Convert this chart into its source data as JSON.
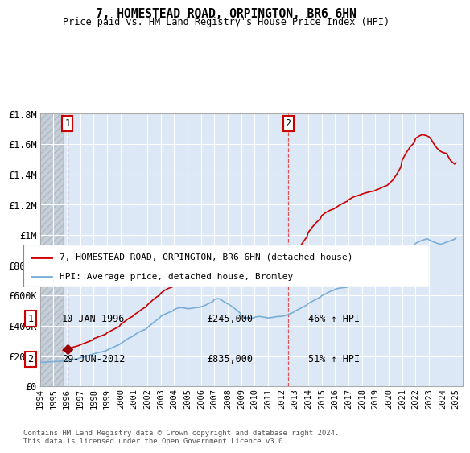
{
  "title": "7, HOMESTEAD ROAD, ORPINGTON, BR6 6HN",
  "subtitle": "Price paid vs. HM Land Registry's House Price Index (HPI)",
  "legend_line1": "7, HOMESTEAD ROAD, ORPINGTON, BR6 6HN (detached house)",
  "legend_line2": "HPI: Average price, detached house, Bromley",
  "annotation1_label": "1",
  "annotation1_date": "10-JAN-1996",
  "annotation1_price": "£245,000",
  "annotation1_hpi": "46% ↑ HPI",
  "annotation1_year": 1996.04,
  "annotation1_value": 245000,
  "annotation2_label": "2",
  "annotation2_date": "29-JUN-2012",
  "annotation2_price": "£835,000",
  "annotation2_hpi": "51% ↑ HPI",
  "annotation2_year": 2012.5,
  "annotation2_value": 835000,
  "ylim": [
    0,
    1800000
  ],
  "xlim_start": 1994.0,
  "xlim_end": 2025.5,
  "hatch_end": 1995.7,
  "yticks": [
    0,
    200000,
    400000,
    600000,
    800000,
    1000000,
    1200000,
    1400000,
    1600000,
    1800000
  ],
  "ytick_labels": [
    "£0",
    "£200K",
    "£400K",
    "£600K",
    "£800K",
    "£1M",
    "£1.2M",
    "£1.4M",
    "£1.6M",
    "£1.8M"
  ],
  "bg_color": "#dce8f5",
  "hatch_color": "#c5cfd8",
  "grid_color": "#ffffff",
  "red_line_color": "#cc0000",
  "blue_line_color": "#7aaed6",
  "marker_color": "#990000",
  "dashed_line_color": "#dd4444",
  "footer": "Contains HM Land Registry data © Crown copyright and database right 2024.\nThis data is licensed under the Open Government Licence v3.0.",
  "hpi_years": [
    1994.0,
    1994.2,
    1994.4,
    1994.6,
    1994.8,
    1995.0,
    1995.2,
    1995.4,
    1995.6,
    1995.8,
    1996.0,
    1996.2,
    1996.5,
    1996.8,
    1997.0,
    1997.3,
    1997.6,
    1997.9,
    1998.0,
    1998.3,
    1998.6,
    1998.9,
    1999.0,
    1999.3,
    1999.6,
    1999.9,
    2000.0,
    2000.3,
    2000.6,
    2000.9,
    2001.0,
    2001.3,
    2001.6,
    2001.9,
    2002.0,
    2002.3,
    2002.6,
    2002.9,
    2003.0,
    2003.3,
    2003.6,
    2003.9,
    2004.0,
    2004.3,
    2004.6,
    2004.9,
    2005.0,
    2005.3,
    2005.6,
    2005.9,
    2006.0,
    2006.3,
    2006.6,
    2006.9,
    2007.0,
    2007.3,
    2007.5,
    2007.7,
    2008.0,
    2008.3,
    2008.6,
    2008.9,
    2009.0,
    2009.3,
    2009.6,
    2009.9,
    2010.0,
    2010.3,
    2010.5,
    2010.8,
    2011.0,
    2011.3,
    2011.6,
    2011.9,
    2012.0,
    2012.3,
    2012.6,
    2012.9,
    2013.0,
    2013.3,
    2013.6,
    2013.9,
    2014.0,
    2014.3,
    2014.6,
    2014.9,
    2015.0,
    2015.3,
    2015.6,
    2015.9,
    2016.0,
    2016.3,
    2016.6,
    2016.9,
    2017.0,
    2017.3,
    2017.6,
    2017.9,
    2018.0,
    2018.3,
    2018.6,
    2018.9,
    2019.0,
    2019.3,
    2019.6,
    2019.9,
    2020.0,
    2020.3,
    2020.6,
    2020.9,
    2021.0,
    2021.3,
    2021.6,
    2021.9,
    2022.0,
    2022.3,
    2022.6,
    2022.9,
    2023.0,
    2023.3,
    2023.6,
    2023.9,
    2024.0,
    2024.3,
    2024.6,
    2024.9,
    2025.0
  ],
  "hpi_values": [
    158000,
    159000,
    160000,
    161000,
    162000,
    163000,
    164000,
    165000,
    166000,
    167000,
    168000,
    172000,
    178000,
    183000,
    188000,
    196000,
    204000,
    212000,
    215000,
    222000,
    228000,
    234000,
    240000,
    252000,
    264000,
    276000,
    282000,
    300000,
    318000,
    330000,
    338000,
    355000,
    368000,
    378000,
    388000,
    410000,
    432000,
    450000,
    462000,
    476000,
    488000,
    498000,
    508000,
    518000,
    520000,
    515000,
    512000,
    516000,
    520000,
    522000,
    525000,
    535000,
    548000,
    562000,
    575000,
    580000,
    572000,
    560000,
    545000,
    528000,
    508000,
    485000,
    468000,
    455000,
    448000,
    452000,
    456000,
    462000,
    460000,
    455000,
    452000,
    455000,
    460000,
    462000,
    462000,
    468000,
    478000,
    490000,
    498000,
    510000,
    524000,
    538000,
    548000,
    562000,
    576000,
    590000,
    598000,
    612000,
    625000,
    635000,
    642000,
    648000,
    652000,
    655000,
    658000,
    668000,
    678000,
    685000,
    690000,
    695000,
    698000,
    700000,
    705000,
    712000,
    718000,
    722000,
    728000,
    735000,
    752000,
    785000,
    830000,
    870000,
    905000,
    930000,
    945000,
    958000,
    968000,
    975000,
    968000,
    955000,
    945000,
    938000,
    942000,
    952000,
    962000,
    972000,
    980000
  ],
  "price_years": [
    1995.7,
    1996.04,
    1996.3,
    1996.6,
    1996.9,
    1997.0,
    1997.3,
    1997.6,
    1997.9,
    1998.0,
    1998.3,
    1998.6,
    1998.9,
    1999.0,
    1999.3,
    1999.6,
    1999.9,
    2000.0,
    2000.3,
    2000.6,
    2000.9,
    2001.0,
    2001.3,
    2001.6,
    2001.9,
    2002.0,
    2002.3,
    2002.6,
    2002.9,
    2003.0,
    2003.3,
    2003.6,
    2003.9,
    2004.0,
    2004.3,
    2004.6,
    2004.9,
    2005.0,
    2005.3,
    2005.6,
    2005.9,
    2006.0,
    2006.3,
    2006.6,
    2006.9,
    2007.0,
    2007.3,
    2007.5,
    2007.7,
    2008.0,
    2008.3,
    2008.6,
    2008.9,
    2009.0,
    2009.3,
    2009.6,
    2009.9,
    2010.0,
    2010.3,
    2010.5,
    2010.8,
    2011.0,
    2011.3,
    2011.6,
    2011.9,
    2012.0,
    2012.3,
    2012.5,
    2012.7,
    2013.0,
    2013.3,
    2013.6,
    2013.9,
    2014.0,
    2014.3,
    2014.6,
    2014.9,
    2015.0,
    2015.3,
    2015.6,
    2015.9,
    2016.0,
    2016.3,
    2016.6,
    2016.9,
    2017.0,
    2017.3,
    2017.6,
    2017.9,
    2018.0,
    2018.3,
    2018.6,
    2018.9,
    2019.0,
    2019.3,
    2019.6,
    2019.9,
    2020.0,
    2020.3,
    2020.6,
    2020.9,
    2021.0,
    2021.3,
    2021.6,
    2021.9,
    2022.0,
    2022.3,
    2022.5,
    2022.7,
    2023.0,
    2023.2,
    2023.4,
    2023.6,
    2023.8,
    2024.0,
    2024.3,
    2024.6,
    2024.9,
    2025.0
  ],
  "price_values": [
    238000,
    245000,
    255000,
    262000,
    270000,
    275000,
    285000,
    295000,
    305000,
    315000,
    325000,
    335000,
    345000,
    355000,
    368000,
    382000,
    395000,
    408000,
    428000,
    448000,
    462000,
    472000,
    490000,
    510000,
    525000,
    538000,
    562000,
    585000,
    602000,
    615000,
    635000,
    648000,
    658000,
    668000,
    685000,
    695000,
    700000,
    705000,
    715000,
    718000,
    715000,
    720000,
    738000,
    758000,
    778000,
    798000,
    822000,
    815000,
    802000,
    788000,
    768000,
    748000,
    728000,
    712000,
    728000,
    745000,
    758000,
    765000,
    772000,
    770000,
    762000,
    758000,
    768000,
    778000,
    792000,
    802000,
    818000,
    835000,
    848000,
    875000,
    912000,
    952000,
    988000,
    1018000,
    1052000,
    1082000,
    1108000,
    1128000,
    1148000,
    1162000,
    1172000,
    1178000,
    1195000,
    1210000,
    1222000,
    1232000,
    1248000,
    1258000,
    1265000,
    1270000,
    1278000,
    1285000,
    1290000,
    1295000,
    1305000,
    1318000,
    1328000,
    1338000,
    1362000,
    1402000,
    1448000,
    1495000,
    1542000,
    1582000,
    1610000,
    1638000,
    1655000,
    1662000,
    1658000,
    1648000,
    1625000,
    1595000,
    1572000,
    1555000,
    1545000,
    1538000,
    1492000,
    1468000,
    1478000
  ]
}
